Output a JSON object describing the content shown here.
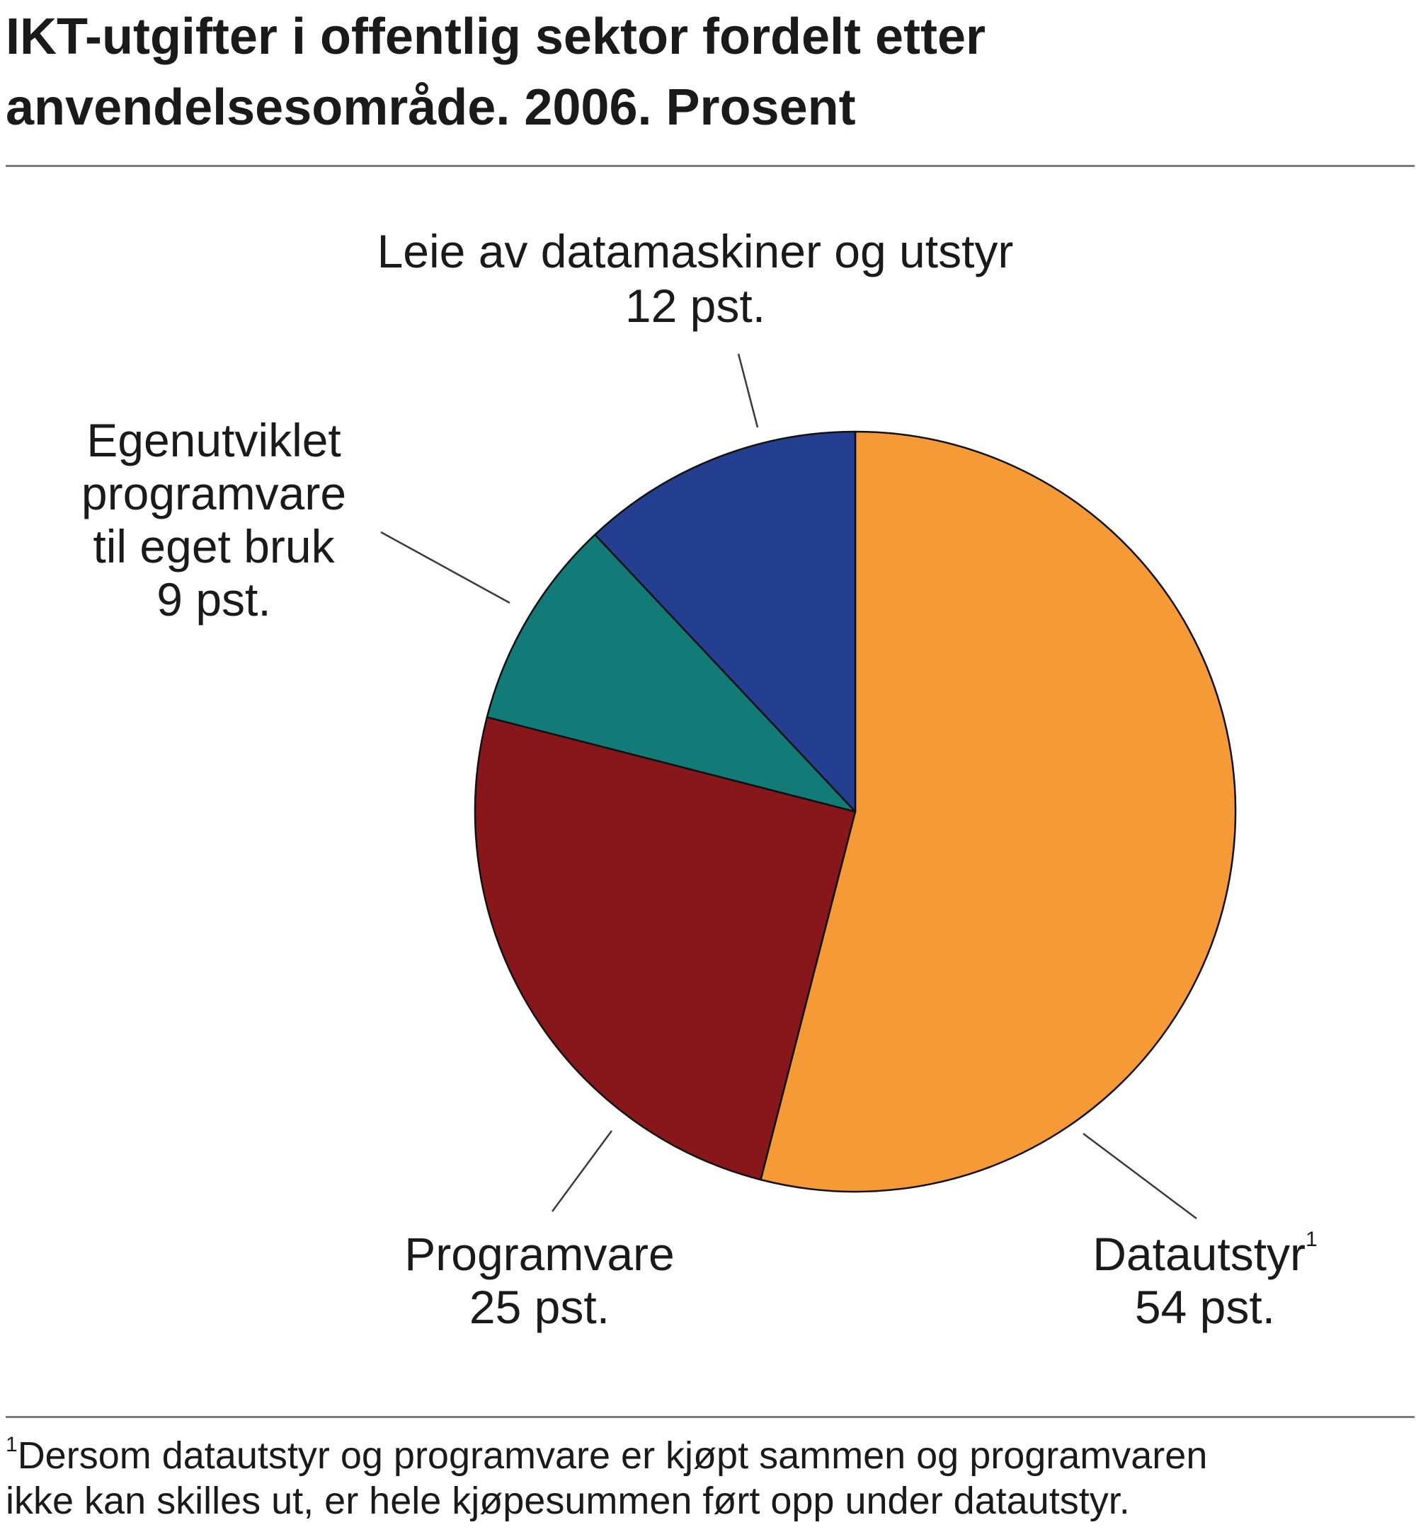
{
  "chart_data": {
    "type": "pie",
    "title_line1": "IKT-utgifter i offentlig sektor fordelt etter",
    "title_line2": "anvendelsesområde. 2006. Prosent",
    "slices": [
      {
        "label": "Datautstyr",
        "label_sup": "1",
        "value_text": "54 pst.",
        "value": 54,
        "color": "#f59a37"
      },
      {
        "label": "Programvare",
        "value_text": "25 pst.",
        "value": 25,
        "color": "#87171a"
      },
      {
        "label": "Egenutviklet programvare til eget bruk",
        "label_lines": [
          "Egenutviklet",
          "programvare",
          "til eget bruk"
        ],
        "value_text": "9 pst.",
        "value": 9,
        "color": "#127b78"
      },
      {
        "label": "Leie av datamaskiner og utstyr",
        "value_text": "12 pst.",
        "value": 12,
        "color": "#243e90"
      }
    ],
    "footnote_marker": "1",
    "footnote_line1": "Dersom datautstyr og programvare er kjøpt sammen og programvaren",
    "footnote_line2": "ikke kan skilles ut, er hele kjøpesummen ført opp under datautstyr."
  }
}
